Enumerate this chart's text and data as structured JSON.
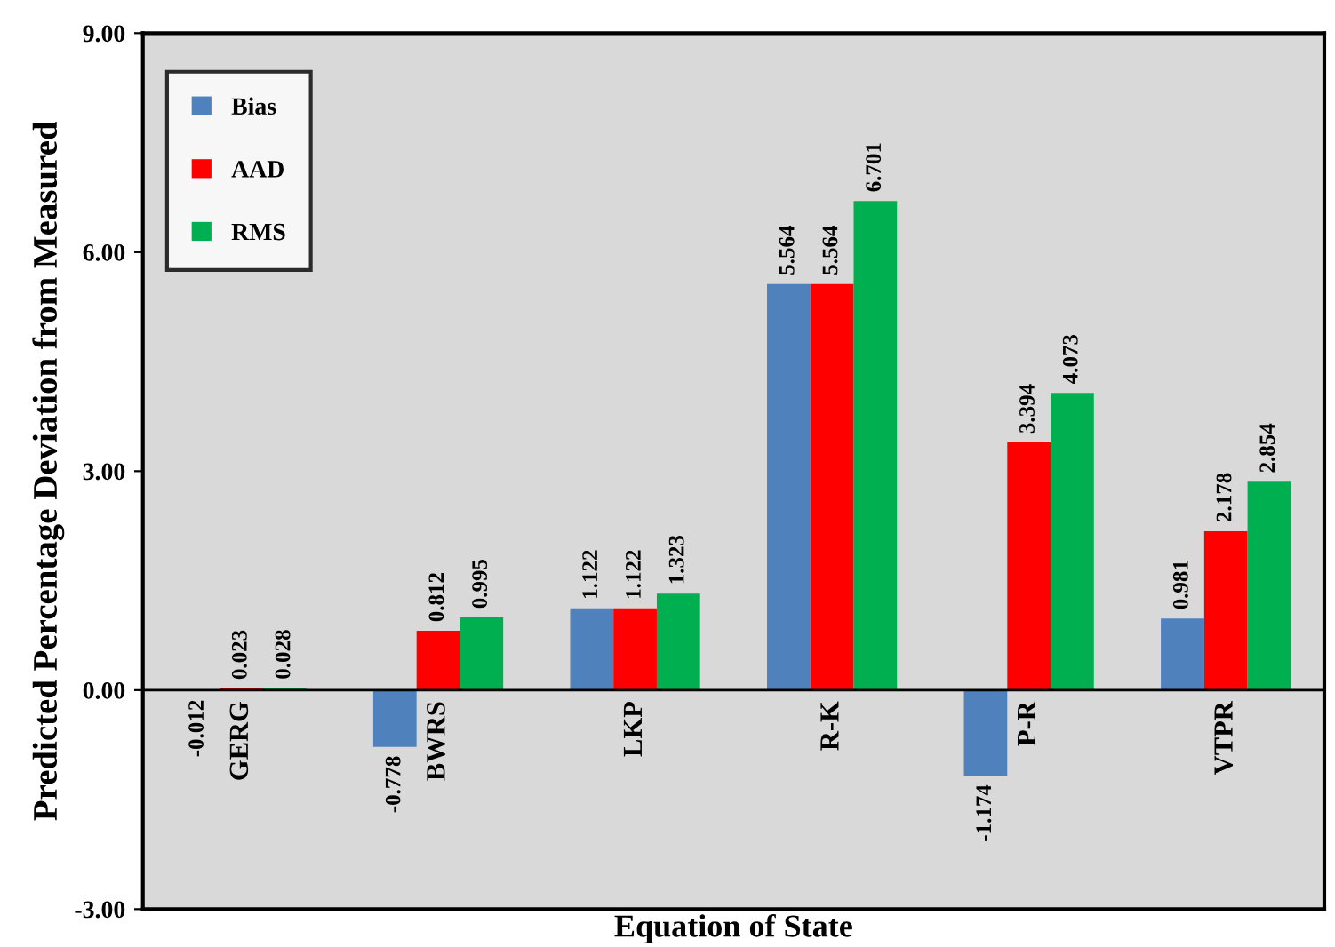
{
  "chart_data": {
    "type": "bar",
    "xlabel": "Equation of State",
    "ylabel": "Predicted Percentage Deviation from Measured",
    "categories": [
      "GERG",
      "BWRS",
      "LKP",
      "R-K",
      "P-R",
      "VTPR"
    ],
    "series": [
      {
        "name": "Bias",
        "color": "#4f81bd",
        "values": [
          -0.012,
          -0.778,
          1.122,
          5.564,
          -1.174,
          0.981
        ]
      },
      {
        "name": "AAD",
        "color": "#ff0000",
        "values": [
          0.023,
          0.812,
          1.122,
          5.564,
          3.394,
          2.178
        ]
      },
      {
        "name": "RMS",
        "color": "#00b050",
        "values": [
          0.028,
          0.995,
          1.323,
          6.701,
          4.073,
          2.854
        ]
      }
    ],
    "ylim": [
      -3,
      9
    ],
    "yticks": [
      {
        "value": -3,
        "label": "-3.00"
      },
      {
        "value": 0,
        "label": "0.00"
      },
      {
        "value": 3,
        "label": "3.00"
      },
      {
        "value": 6,
        "label": "6.00"
      },
      {
        "value": 9,
        "label": "9.00"
      }
    ],
    "data_labels": true,
    "legend": "top left",
    "grid": false
  }
}
